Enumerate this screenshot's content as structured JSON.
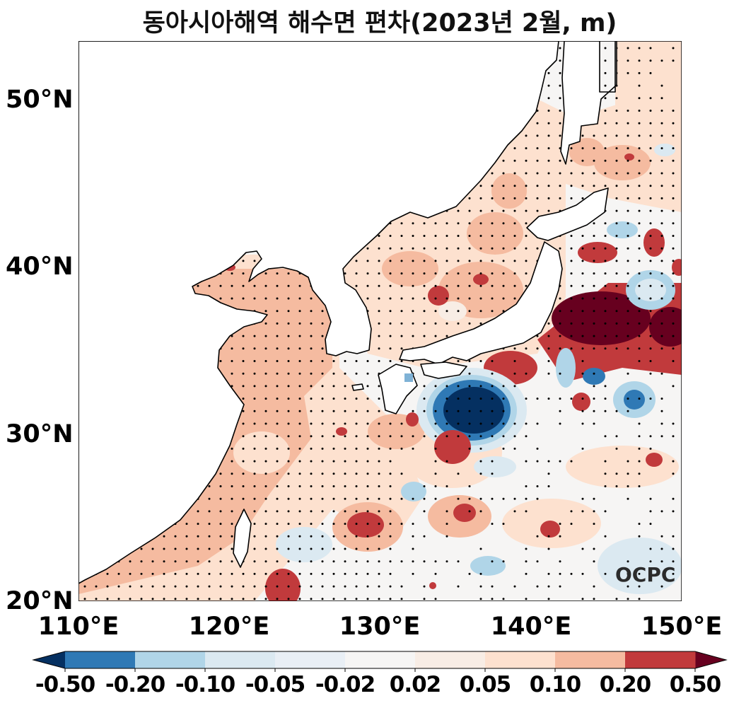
{
  "title": "동아시아해역 해수면 편차(2023년 2월, m)",
  "y_ticks": [
    "50°N",
    "40°N",
    "30°N",
    "20°N"
  ],
  "x_ticks": [
    "110°E",
    "120°E",
    "130°E",
    "140°E",
    "150°E"
  ],
  "colorbar": {
    "labels": [
      "-0.50",
      "-0.20",
      "-0.10",
      "-0.05",
      "-0.02",
      "0.02",
      "0.05",
      "0.10",
      "0.20",
      "0.50"
    ],
    "colors": [
      "#2f79b5",
      "#b0d5e8",
      "#dbe9f1",
      "#e9eff5",
      "#f6f5f4",
      "#f8ede5",
      "#fde1cf",
      "#f5bba0",
      "#c13a3c"
    ],
    "under_color": "#053061",
    "over_color": "#67001f",
    "extend": "both"
  },
  "logo": "OCPC"
}
